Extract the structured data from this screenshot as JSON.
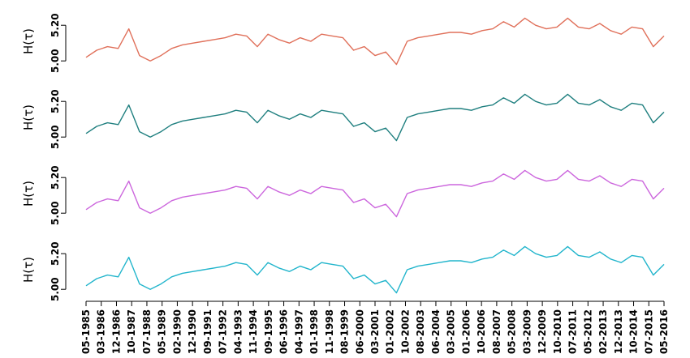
{
  "chart_data": {
    "type": "line",
    "panels": [
      {
        "ylabel": "H(τ)",
        "color": "#E0705A",
        "ylim": [
          4.96,
          5.26
        ],
        "yticks": [
          "5.00",
          "5.20"
        ]
      },
      {
        "ylabel": "H(τ)",
        "color": "#1F7F7F",
        "ylim": [
          4.96,
          5.26
        ],
        "yticks": [
          "5.00",
          "5.20"
        ]
      },
      {
        "ylabel": "H(τ)",
        "color": "#CC66DD",
        "ylim": [
          4.96,
          5.26
        ],
        "yticks": [
          "5.00",
          "5.20"
        ]
      },
      {
        "ylabel": "H(τ)",
        "color": "#22B5CC",
        "ylim": [
          4.96,
          5.26
        ],
        "yticks": [
          "5.00",
          "5.20"
        ]
      }
    ],
    "x_ticks": [
      "05-1985",
      "03-1986",
      "12-1986",
      "10-1987",
      "07-1988",
      "05-1989",
      "02-1990",
      "12-1990",
      "09-1991",
      "07-1992",
      "04-1993",
      "11-1994",
      "09-1995",
      "06-1996",
      "04-1997",
      "01-1998",
      "11-1998",
      "08-1999",
      "06-2000",
      "03-2001",
      "01-2002",
      "10-2002",
      "08-2003",
      "06-2004",
      "03-2005",
      "01-2006",
      "10-2006",
      "08-2007",
      "05-2008",
      "03-2009",
      "12-2009",
      "10-2010",
      "07-2011",
      "05-2012",
      "02-2013",
      "12-2013",
      "10-2014",
      "07-2015",
      "05-2016"
    ],
    "x": [
      "05-1985",
      "12-1985",
      "07-1986",
      "02-1987",
      "09-1987",
      "04-1988",
      "11-1988",
      "06-1989",
      "01-1990",
      "08-1990",
      "03-1991",
      "10-1991",
      "05-1992",
      "12-1992",
      "07-1993",
      "02-1994",
      "09-1994",
      "04-1995",
      "11-1995",
      "06-1996",
      "01-1997",
      "08-1997",
      "03-1998",
      "10-1998",
      "05-1999",
      "12-1999",
      "07-2000",
      "02-2001",
      "09-2001",
      "04-2002",
      "11-2002",
      "06-2003",
      "01-2004",
      "08-2004",
      "03-2005",
      "10-2005",
      "05-2006",
      "12-2006",
      "07-2007",
      "02-2008",
      "09-2008",
      "04-2009",
      "11-2009",
      "06-2010",
      "01-2011",
      "08-2011",
      "03-2012",
      "10-2012",
      "05-2013",
      "12-2013",
      "07-2014",
      "02-2015",
      "09-2015",
      "04-2016",
      "11-2016"
    ],
    "series": [
      {
        "values": [
          5.02,
          5.06,
          5.08,
          5.07,
          5.18,
          5.03,
          5.0,
          5.03,
          5.07,
          5.09,
          5.1,
          5.11,
          5.12,
          5.13,
          5.15,
          5.14,
          5.08,
          5.15,
          5.12,
          5.1,
          5.13,
          5.11,
          5.15,
          5.14,
          5.13,
          5.06,
          5.08,
          5.03,
          5.05,
          4.98,
          5.11,
          5.13,
          5.14,
          5.15,
          5.16,
          5.16,
          5.15,
          5.17,
          5.18,
          5.22,
          5.19,
          5.24,
          5.2,
          5.18,
          5.19,
          5.24,
          5.19,
          5.18,
          5.21,
          5.17,
          5.15,
          5.19,
          5.18,
          5.08,
          5.14
        ]
      },
      {
        "values": [
          5.02,
          5.06,
          5.08,
          5.07,
          5.18,
          5.03,
          5.0,
          5.03,
          5.07,
          5.09,
          5.1,
          5.11,
          5.12,
          5.13,
          5.15,
          5.14,
          5.08,
          5.15,
          5.12,
          5.1,
          5.13,
          5.11,
          5.15,
          5.14,
          5.13,
          5.06,
          5.08,
          5.03,
          5.05,
          4.98,
          5.11,
          5.13,
          5.14,
          5.15,
          5.16,
          5.16,
          5.15,
          5.17,
          5.18,
          5.22,
          5.19,
          5.24,
          5.2,
          5.18,
          5.19,
          5.24,
          5.19,
          5.18,
          5.21,
          5.17,
          5.15,
          5.19,
          5.18,
          5.08,
          5.14
        ]
      },
      {
        "values": [
          5.02,
          5.06,
          5.08,
          5.07,
          5.18,
          5.03,
          5.0,
          5.03,
          5.07,
          5.09,
          5.1,
          5.11,
          5.12,
          5.13,
          5.15,
          5.14,
          5.08,
          5.15,
          5.12,
          5.1,
          5.13,
          5.11,
          5.15,
          5.14,
          5.13,
          5.06,
          5.08,
          5.03,
          5.05,
          4.98,
          5.11,
          5.13,
          5.14,
          5.15,
          5.16,
          5.16,
          5.15,
          5.17,
          5.18,
          5.22,
          5.19,
          5.24,
          5.2,
          5.18,
          5.19,
          5.24,
          5.19,
          5.18,
          5.21,
          5.17,
          5.15,
          5.19,
          5.18,
          5.08,
          5.14
        ]
      },
      {
        "values": [
          5.02,
          5.06,
          5.08,
          5.07,
          5.18,
          5.03,
          5.0,
          5.03,
          5.07,
          5.09,
          5.1,
          5.11,
          5.12,
          5.13,
          5.15,
          5.14,
          5.08,
          5.15,
          5.12,
          5.1,
          5.13,
          5.11,
          5.15,
          5.14,
          5.13,
          5.06,
          5.08,
          5.03,
          5.05,
          4.98,
          5.11,
          5.13,
          5.14,
          5.15,
          5.16,
          5.16,
          5.15,
          5.17,
          5.18,
          5.22,
          5.19,
          5.24,
          5.2,
          5.18,
          5.19,
          5.24,
          5.19,
          5.18,
          5.21,
          5.17,
          5.15,
          5.19,
          5.18,
          5.08,
          5.14
        ]
      }
    ],
    "grid": false,
    "legend": "none"
  }
}
